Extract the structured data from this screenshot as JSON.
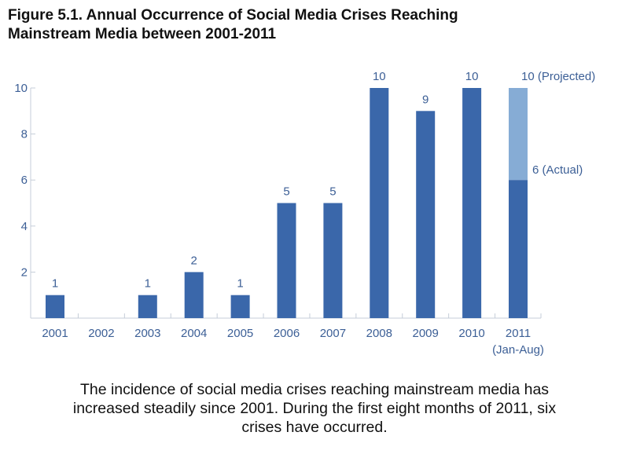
{
  "chart_data": {
    "type": "bar",
    "title": "Figure 5.1. Annual Occurrence of Social Media Crises Reaching Mainstream Media between 2001-2011",
    "title_lines": [
      "Figure 5.1. Annual Occurrence of Social Media Crises Reaching",
      "Mainstream Media between 2001-2011"
    ],
    "categories": [
      "2001",
      "2002",
      "2003",
      "2004",
      "2005",
      "2006",
      "2007",
      "2008",
      "2009",
      "2010",
      "2011"
    ],
    "category_sublabels": {
      "2011": "(Jan-Aug)"
    },
    "values": [
      1,
      0,
      1,
      2,
      1,
      5,
      5,
      10,
      9,
      10,
      6
    ],
    "data_labels": [
      "1",
      "",
      "1",
      "2",
      "1",
      "5",
      "5",
      "10",
      "9",
      "10",
      "6 (Actual)"
    ],
    "projected": {
      "category": "2011",
      "value": 10,
      "label": "10 (Projected)"
    },
    "yticks": [
      2,
      4,
      6,
      8,
      10
    ],
    "ylim": [
      0,
      10
    ],
    "xlabel": "",
    "ylabel": "",
    "grid": false,
    "colors": {
      "bar": "#3a67aa",
      "projected": "#86acd5",
      "text": "#3c5f96",
      "axis": "#c5cdd8"
    }
  },
  "caption": "The incidence of social media crises reaching mainstream media has increased steadily since 2001. During the first eight months of 2011, six crises have occurred.",
  "caption_lines": [
    "The incidence of social media crises reaching mainstream media has",
    "increased steadily since 2001. During the first eight months of 2011, six",
    "crises have occurred."
  ]
}
